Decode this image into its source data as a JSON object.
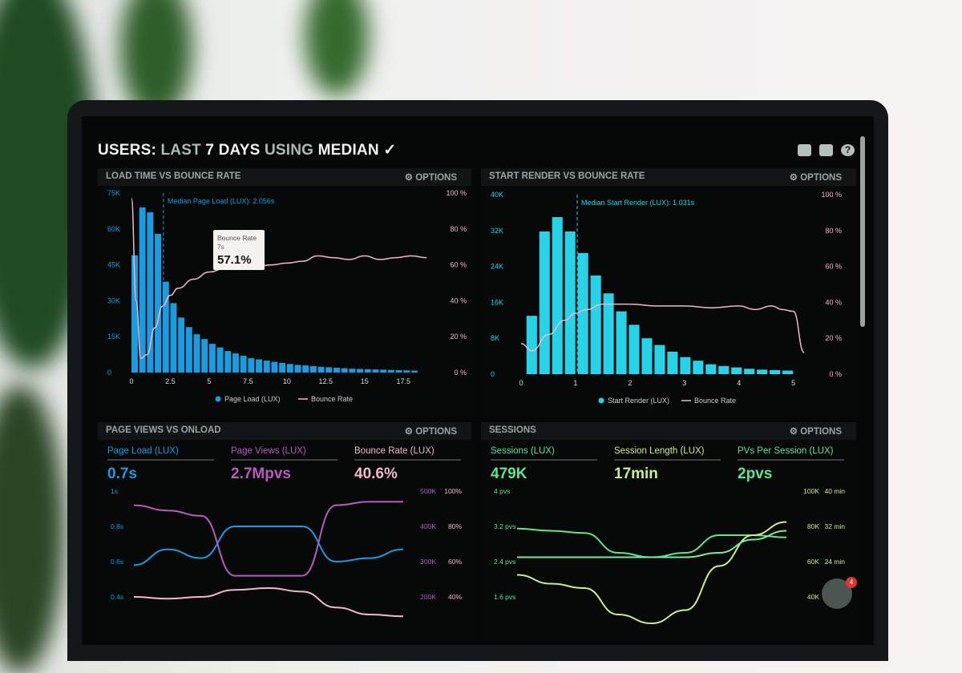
{
  "header": {
    "users": "USERS:",
    "last": "LAST",
    "days": "7 DAYS",
    "using": "USING",
    "median": "MEDIAN",
    "chevron": "chevron-down-icon"
  },
  "toolbar_icons": [
    "monitor-icon",
    "share-icon",
    "help-icon"
  ],
  "help_glyph": "?",
  "options_label": "⚙ OPTIONS",
  "chat_badge": "4",
  "colors": {
    "blue": "#1b9be0",
    "pink": "#f3b8c6",
    "cyan": "#27d3e8",
    "purple": "#b55cc0",
    "green": "#5ee68f",
    "lime": "#c8f08a"
  },
  "chart_data": [
    {
      "type": "bar",
      "title": "LOAD TIME VS BOUNCE RATE",
      "annotation": "Median Page Load (LUX): 2.056s",
      "median_x": 2.056,
      "tooltip": {
        "title": "Bounce Rate",
        "sub": "7s",
        "value": "57.1%"
      },
      "x_ticks": [
        "0",
        "2.5",
        "5",
        "7.5",
        "10",
        "12.5",
        "15",
        "17.5"
      ],
      "y_ticks": [
        "0",
        "15K",
        "30K",
        "45K",
        "60K",
        "75K"
      ],
      "y2_ticks": [
        "0 %",
        "20 %",
        "40 %",
        "60 %",
        "80 %",
        "100 %"
      ],
      "ylim": [
        0,
        75
      ],
      "xlim": [
        0,
        19.5
      ],
      "series": [
        {
          "name": "Page Load (LUX)",
          "type": "bar",
          "x_start": 0,
          "x_step": 0.5,
          "values": [
            49,
            69,
            67,
            58,
            38,
            29,
            23,
            19,
            16,
            14,
            12,
            10.5,
            9,
            8,
            7,
            6,
            5.5,
            5,
            4.5,
            4,
            3.6,
            3.2,
            3,
            2.7,
            2.4,
            2.2,
            2,
            1.8,
            1.6,
            1.5,
            1.4,
            1.3,
            1.2,
            1.1,
            1,
            0.9,
            0.8
          ]
        },
        {
          "name": "Bounce Rate",
          "type": "line",
          "x": [
            0,
            0.3,
            0.6,
            1,
            1.5,
            2,
            2.5,
            3,
            4,
            5,
            6,
            7,
            8,
            9,
            10,
            11,
            12,
            13,
            14,
            15,
            16,
            17,
            18,
            19
          ],
          "values": [
            97,
            40,
            8,
            10,
            25,
            37,
            43,
            47,
            52,
            56,
            58,
            59,
            59,
            60,
            61,
            62,
            65,
            64,
            63,
            65,
            63,
            64,
            65,
            64
          ]
        }
      ]
    },
    {
      "type": "bar",
      "title": "START RENDER VS BOUNCE RATE",
      "annotation": "Median Start Render (LUX): 1.031s",
      "median_x": 1.031,
      "x_ticks": [
        "0",
        "1",
        "2",
        "3",
        "4",
        "5"
      ],
      "y_ticks": [
        "0",
        "8K",
        "16K",
        "24K",
        "32K",
        "40K"
      ],
      "y2_ticks": [
        "0 %",
        "20 %",
        "40 %",
        "60 %",
        "80 %",
        "100 %"
      ],
      "ylim": [
        0,
        40
      ],
      "xlim": [
        0,
        5.3
      ],
      "series": [
        {
          "name": "Start Render (LUX)",
          "type": "bar",
          "x_start": 0.1,
          "x_step": 0.235,
          "values": [
            13,
            31.8,
            35,
            31.8,
            27,
            22,
            18,
            14,
            11,
            8,
            6.5,
            5,
            3.8,
            3,
            2.2,
            1.8,
            1.5,
            1.2,
            1,
            0.9,
            0.8
          ]
        },
        {
          "name": "Bounce Rate",
          "type": "line",
          "x": [
            0,
            0.2,
            0.5,
            0.8,
            1,
            1.2,
            1.5,
            2,
            2.5,
            3,
            3.5,
            4,
            4.3,
            4.6,
            4.8,
            5,
            5.2
          ],
          "values": [
            17,
            13,
            22,
            30,
            34,
            36,
            39,
            39,
            38,
            38,
            37,
            38,
            36,
            38,
            36,
            35,
            12
          ]
        }
      ]
    },
    {
      "type": "line",
      "title": "PAGE VIEWS VS ONLOAD",
      "kpis": [
        {
          "label": "Page Load (LUX)",
          "value": "0.7s"
        },
        {
          "label": "Page Views (LUX)",
          "value": "2.7Mpvs"
        },
        {
          "label": "Bounce Rate (LUX)",
          "value": "40.6%"
        }
      ],
      "y_ticks": [
        "0.4s",
        "0.6s",
        "0.8s",
        "1s"
      ],
      "y2_ticks": [
        "200K",
        "300K",
        "400K",
        "500K"
      ],
      "y3_ticks": [
        "40%",
        "60%",
        "80%",
        "100%"
      ],
      "series": [
        {
          "name": "Page Load (LUX)",
          "x": [
            0,
            1,
            2,
            3,
            4,
            5,
            6,
            7,
            8
          ],
          "values": [
            0.58,
            0.67,
            0.62,
            0.8,
            0.8,
            0.8,
            0.6,
            0.62,
            0.67
          ]
        },
        {
          "name": "Page Views (LUX)",
          "x": [
            0,
            1,
            2,
            3,
            4,
            5,
            6,
            7,
            8
          ],
          "values": [
            0.92,
            0.89,
            0.86,
            0.52,
            0.52,
            0.52,
            0.92,
            0.94,
            0.94
          ]
        },
        {
          "name": "Bounce Rate (LUX)",
          "x": [
            0,
            1,
            2,
            3,
            4,
            5,
            6,
            7,
            8
          ],
          "values": [
            0.4,
            0.39,
            0.4,
            0.44,
            0.45,
            0.43,
            0.34,
            0.3,
            0.29
          ]
        }
      ]
    },
    {
      "type": "line",
      "title": "SESSIONS",
      "kpis": [
        {
          "label": "Sessions (LUX)",
          "value": "479K"
        },
        {
          "label": "Session Length (LUX)",
          "value": "17min"
        },
        {
          "label": "PVs Per Session (LUX)",
          "value": "2pvs"
        }
      ],
      "y_ticks": [
        "1.6 pvs",
        "2.4 pvs",
        "3.2 pvs",
        "4 pvs"
      ],
      "y2_ticks": [
        "40K",
        "60K",
        "80K",
        "100K"
      ],
      "y3_ticks": [
        "24 min",
        "32 min",
        "40 min"
      ],
      "series": [
        {
          "name": "Sessions (LUX)",
          "x": [
            0,
            1,
            2,
            3,
            4,
            5,
            6,
            7,
            8
          ],
          "values": [
            3.15,
            3.1,
            3.05,
            2.6,
            2.5,
            2.6,
            3,
            3.0,
            2.95
          ]
        },
        {
          "name": "Session Length (LUX)",
          "x": [
            0,
            1,
            2,
            3,
            4,
            5,
            6,
            7,
            8
          ],
          "values": [
            2.1,
            1.9,
            1.8,
            1.2,
            1.0,
            1.3,
            2.3,
            3.0,
            3.3
          ]
        },
        {
          "name": "PVs Per Session (LUX)",
          "x": [
            0,
            1,
            2,
            3,
            4,
            5,
            6,
            7,
            8
          ],
          "values": [
            2.5,
            2.5,
            2.5,
            2.5,
            2.5,
            2.5,
            2.6,
            2.9,
            3.1
          ]
        }
      ]
    }
  ]
}
